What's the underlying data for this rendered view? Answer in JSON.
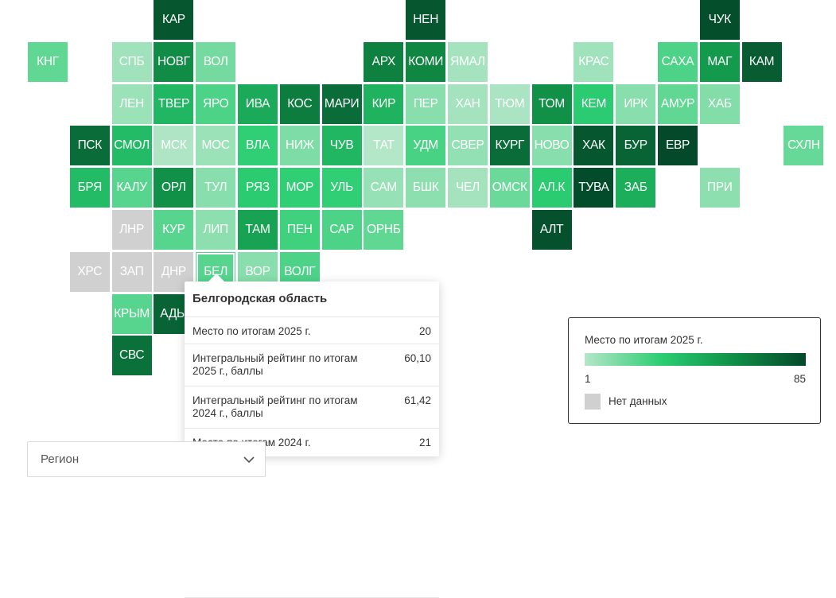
{
  "colors": {
    "scale": [
      "#b4e6c8",
      "#2bcd72",
      "#119449",
      "#03492a"
    ],
    "no_data": "#d0d0d0"
  },
  "regions": [
    {
      "code": "КАР",
      "rank": 80
    },
    {
      "code": "НЕН",
      "rank": 80
    },
    {
      "code": "ЧУК",
      "rank": 83
    },
    {
      "code": "КНГ",
      "rank": 18
    },
    {
      "code": "СПБ",
      "rank": 5
    },
    {
      "code": "НОВГ",
      "rank": 60
    },
    {
      "code": "ВОЛ",
      "rank": 14
    },
    {
      "code": "АРХ",
      "rank": 64
    },
    {
      "code": "КОМИ",
      "rank": 62
    },
    {
      "code": "ЯМАЛ",
      "rank": 4
    },
    {
      "code": "КРАС",
      "rank": 5
    },
    {
      "code": "САХА",
      "rank": 22
    },
    {
      "code": "МАГ",
      "rank": 54
    },
    {
      "code": "КАМ",
      "rank": 78
    },
    {
      "code": "ЛЕН",
      "rank": 6
    },
    {
      "code": "ТВЕР",
      "rank": 40
    },
    {
      "code": "ЯРО",
      "rank": 22
    },
    {
      "code": "ИВА",
      "rank": 46
    },
    {
      "code": "КОС",
      "rank": 66
    },
    {
      "code": "МАРИ",
      "rank": 72
    },
    {
      "code": "КИР",
      "rank": 42
    },
    {
      "code": "ПЕР",
      "rank": 10
    },
    {
      "code": "ХАН",
      "rank": 4
    },
    {
      "code": "ТЮМ",
      "rank": 3
    },
    {
      "code": "ТОМ",
      "rank": 58
    },
    {
      "code": "КЕМ",
      "rank": 30
    },
    {
      "code": "ИРК",
      "rank": 10
    },
    {
      "code": "АМУР",
      "rank": 18
    },
    {
      "code": "ХАБ",
      "rank": 11
    },
    {
      "code": "ПСК",
      "rank": 72
    },
    {
      "code": "СМОЛ",
      "rank": 38
    },
    {
      "code": "МСК",
      "rank": 2
    },
    {
      "code": "МОС",
      "rank": 6
    },
    {
      "code": "ВЛА",
      "rank": 28
    },
    {
      "code": "НИЖ",
      "rank": 12
    },
    {
      "code": "ЧУВ",
      "rank": 40
    },
    {
      "code": "ТАТ",
      "rank": 1
    },
    {
      "code": "УДМ",
      "rank": 23
    },
    {
      "code": "СВЕР",
      "rank": 8
    },
    {
      "code": "КУРГ",
      "rank": 72
    },
    {
      "code": "НОВО",
      "rank": 10
    },
    {
      "code": "ХАК",
      "rank": 80
    },
    {
      "code": "БУР",
      "rank": 75
    },
    {
      "code": "ЕВР",
      "rank": 85
    },
    {
      "code": "СХЛН",
      "rank": 17
    },
    {
      "code": "БРЯ",
      "rank": 38
    },
    {
      "code": "КАЛУ",
      "rank": 20
    },
    {
      "code": "ОРЛ",
      "rank": 58
    },
    {
      "code": "ТУЛ",
      "rank": 10
    },
    {
      "code": "РЯЗ",
      "rank": 30
    },
    {
      "code": "МОР",
      "rank": 28
    },
    {
      "code": "УЛЬ",
      "rank": 28
    },
    {
      "code": "САМ",
      "rank": 7
    },
    {
      "code": "БШК",
      "rank": 9
    },
    {
      "code": "ЧЕЛ",
      "rank": 4
    },
    {
      "code": "ОМСК",
      "rank": 16
    },
    {
      "code": "АЛ.К",
      "rank": 30
    },
    {
      "code": "ТУВА",
      "rank": 84
    },
    {
      "code": "ЗАБ",
      "rank": 44
    },
    {
      "code": "ПРИ",
      "rank": 9
    },
    {
      "code": "ЛНР",
      "rank": null
    },
    {
      "code": "КУР",
      "rank": 20
    },
    {
      "code": "ЛИП",
      "rank": 9
    },
    {
      "code": "ТАМ",
      "rank": 50
    },
    {
      "code": "ПЕН",
      "rank": 25
    },
    {
      "code": "САР",
      "rank": 22
    },
    {
      "code": "ОРНБ",
      "rank": 18
    },
    {
      "code": "АЛТ",
      "rank": 82
    },
    {
      "code": "ХРС",
      "rank": null
    },
    {
      "code": "ЗАП",
      "rank": null
    },
    {
      "code": "ДНР",
      "rank": null
    },
    {
      "code": "БЕЛ",
      "rank": 20
    },
    {
      "code": "ВОР",
      "rank": 10
    },
    {
      "code": "ВОЛГ",
      "rank": 22
    },
    {
      "code": "КРЫМ",
      "rank": 20
    },
    {
      "code": "АДЫ",
      "rank": 75
    },
    {
      "code": "СВС",
      "rank": 70
    }
  ],
  "tooltip": {
    "title": "Белгородская область",
    "rows": [
      {
        "label": "Место по итогам 2025 г.",
        "value": "20"
      },
      {
        "label": "Интегральный рейтинг по итогам 2025 г., баллы",
        "value": "60,10"
      },
      {
        "label": "Интегральный рейтинг по итогам 2024 г., баллы",
        "value": "61,42"
      },
      {
        "label": "Место по итогам 2024 г.",
        "value": "21"
      }
    ]
  },
  "legend": {
    "title": "Место по итогам 2025 г.",
    "min_label": "1",
    "max_label": "85",
    "no_data_label": "Нет данных"
  },
  "region_select": {
    "placeholder": "Регион",
    "icon": "chevron-down-icon"
  }
}
